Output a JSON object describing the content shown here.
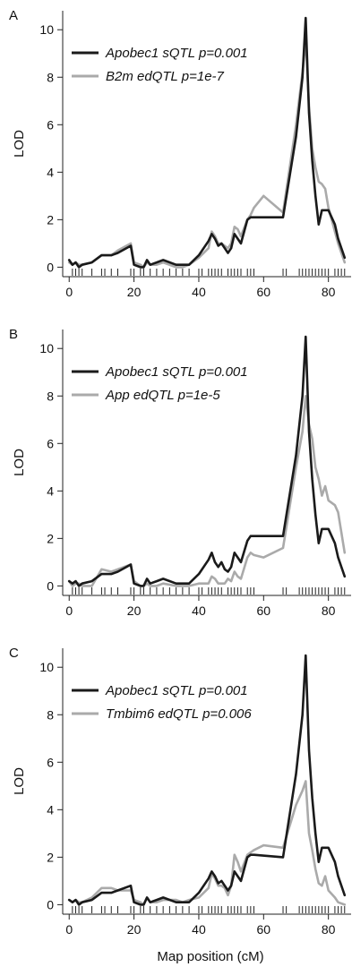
{
  "figure": {
    "xlabel": "Map position (cM)"
  },
  "colors": {
    "series_dark": "#1a1a1a",
    "series_light": "#aaaaaa",
    "axis": "#222222"
  },
  "chart_data": [
    {
      "type": "line",
      "panel_label": "A",
      "xlabel": "",
      "ylabel": "LOD",
      "xlim": [
        -2,
        87
      ],
      "ylim": [
        -0.4,
        10.8
      ],
      "xticks": [
        0,
        20,
        40,
        60,
        80
      ],
      "yticks": [
        0,
        2,
        4,
        6,
        8,
        10
      ],
      "legend_position": "top-left",
      "marker_positions": [
        1,
        2,
        3,
        4,
        7,
        10,
        11,
        13,
        15,
        19,
        20,
        22,
        23,
        25,
        27,
        29,
        31,
        33,
        35,
        37,
        40,
        41,
        43,
        44,
        45,
        46,
        47,
        49,
        50,
        51,
        52,
        53,
        55,
        56,
        57,
        66,
        67,
        71,
        72,
        73,
        74,
        75,
        76,
        77,
        78,
        79,
        80,
        82,
        83,
        84,
        85
      ],
      "series": [
        {
          "name": "Apobec1 sQTL p=0.001",
          "color": "#1a1a1a",
          "x": [
            0,
            1,
            2,
            3,
            4,
            7,
            10,
            13,
            15,
            19,
            20,
            22,
            23,
            24,
            25,
            27,
            29,
            33,
            35,
            37,
            40,
            43,
            44,
            45,
            46,
            47,
            48,
            49,
            50,
            51,
            52,
            53,
            55,
            56,
            57,
            66,
            70,
            72,
            73,
            74,
            75,
            76,
            77,
            78,
            79,
            80,
            82,
            83,
            85
          ],
          "y": [
            0.3,
            0.1,
            0.2,
            0.0,
            0.1,
            0.2,
            0.5,
            0.5,
            0.6,
            0.9,
            0.1,
            0.0,
            0.0,
            0.3,
            0.1,
            0.2,
            0.3,
            0.1,
            0.1,
            0.1,
            0.5,
            1.1,
            1.4,
            1.2,
            0.9,
            1.0,
            0.8,
            0.6,
            0.8,
            1.4,
            1.2,
            1.0,
            2.0,
            2.1,
            2.1,
            2.1,
            5.5,
            8.0,
            10.5,
            6.5,
            4.5,
            3.0,
            1.8,
            2.4,
            2.4,
            2.4,
            1.8,
            1.2,
            0.4
          ]
        },
        {
          "name": "B2m edQTL p=1e-7",
          "color": "#aaaaaa",
          "x": [
            0,
            1,
            2,
            3,
            4,
            7,
            10,
            13,
            15,
            19,
            20,
            22,
            23,
            24,
            25,
            27,
            29,
            33,
            35,
            37,
            40,
            43,
            44,
            45,
            46,
            47,
            48,
            49,
            50,
            51,
            52,
            53,
            55,
            56,
            57,
            60,
            66,
            70,
            72,
            73,
            74,
            75,
            76,
            77,
            78,
            79,
            80,
            82,
            83,
            85
          ],
          "y": [
            0.2,
            0.1,
            0.2,
            0.1,
            0.1,
            0.2,
            0.5,
            0.5,
            0.7,
            1.0,
            0.2,
            0.1,
            0.0,
            0.2,
            0.1,
            0.1,
            0.2,
            0.0,
            0.0,
            0.1,
            0.4,
            0.8,
            1.5,
            1.3,
            1.0,
            1.0,
            0.9,
            0.8,
            1.0,
            1.7,
            1.6,
            1.3,
            2.0,
            2.2,
            2.5,
            3.0,
            2.3,
            6.0,
            8.2,
            9.6,
            6.8,
            5.0,
            4.2,
            3.6,
            3.5,
            3.3,
            2.5,
            1.5,
            1.0,
            0.2
          ]
        }
      ]
    },
    {
      "type": "line",
      "panel_label": "B",
      "xlabel": "",
      "ylabel": "LOD",
      "xlim": [
        -2,
        87
      ],
      "ylim": [
        -0.4,
        10.8
      ],
      "xticks": [
        0,
        20,
        40,
        60,
        80
      ],
      "yticks": [
        0,
        2,
        4,
        6,
        8,
        10
      ],
      "legend_position": "top-left",
      "marker_positions": [
        1,
        2,
        3,
        4,
        7,
        10,
        11,
        13,
        15,
        19,
        20,
        22,
        23,
        25,
        27,
        29,
        31,
        33,
        35,
        37,
        40,
        41,
        43,
        44,
        45,
        46,
        47,
        49,
        50,
        51,
        52,
        53,
        55,
        56,
        57,
        66,
        67,
        71,
        72,
        73,
        74,
        75,
        76,
        77,
        78,
        79,
        80,
        82,
        83,
        84,
        85
      ],
      "series": [
        {
          "name": "Apobec1 sQTL p=0.001",
          "color": "#1a1a1a",
          "x": [
            0,
            1,
            2,
            3,
            4,
            7,
            10,
            13,
            15,
            19,
            20,
            22,
            23,
            24,
            25,
            27,
            29,
            33,
            35,
            37,
            40,
            43,
            44,
            45,
            46,
            47,
            48,
            49,
            50,
            51,
            52,
            53,
            55,
            56,
            57,
            66,
            70,
            72,
            73,
            74,
            75,
            76,
            77,
            78,
            79,
            80,
            82,
            83,
            85
          ],
          "y": [
            0.2,
            0.1,
            0.2,
            0.0,
            0.1,
            0.2,
            0.5,
            0.5,
            0.6,
            0.9,
            0.1,
            0.0,
            0.0,
            0.3,
            0.1,
            0.2,
            0.3,
            0.1,
            0.1,
            0.1,
            0.5,
            1.1,
            1.4,
            1.0,
            0.8,
            1.0,
            0.7,
            0.6,
            0.8,
            1.4,
            1.2,
            1.0,
            1.9,
            2.1,
            2.1,
            2.1,
            5.5,
            8.0,
            10.5,
            6.5,
            4.5,
            3.0,
            1.8,
            2.4,
            2.4,
            2.4,
            1.8,
            1.2,
            0.4
          ]
        },
        {
          "name": "App edQTL p=1e-5",
          "color": "#aaaaaa",
          "x": [
            0,
            1,
            2,
            3,
            4,
            7,
            10,
            13,
            15,
            19,
            20,
            22,
            23,
            24,
            25,
            27,
            29,
            33,
            35,
            37,
            40,
            43,
            44,
            45,
            46,
            47,
            48,
            49,
            50,
            51,
            52,
            53,
            55,
            56,
            57,
            60,
            66,
            70,
            72,
            73,
            74,
            75,
            76,
            77,
            78,
            79,
            80,
            82,
            83,
            85
          ],
          "y": [
            0.2,
            0.0,
            0.1,
            0.1,
            0.0,
            0.0,
            0.7,
            0.6,
            0.7,
            0.9,
            0.2,
            0.0,
            0.0,
            0.1,
            0.0,
            0.0,
            0.1,
            0.0,
            0.0,
            0.0,
            0.1,
            0.1,
            0.4,
            0.3,
            0.1,
            0.1,
            0.1,
            0.3,
            0.2,
            0.6,
            0.4,
            0.3,
            1.2,
            1.4,
            1.3,
            1.2,
            1.6,
            5.0,
            6.5,
            8.0,
            6.8,
            6.2,
            5.0,
            4.5,
            3.8,
            4.2,
            3.6,
            3.4,
            3.1,
            1.4
          ]
        }
      ]
    },
    {
      "type": "line",
      "panel_label": "C",
      "xlabel": "",
      "ylabel": "LOD",
      "xlim": [
        -2,
        87
      ],
      "ylim": [
        -0.4,
        10.8
      ],
      "xticks": [
        0,
        20,
        40,
        60,
        80
      ],
      "yticks": [
        0,
        2,
        4,
        6,
        8,
        10
      ],
      "legend_position": "top-left",
      "marker_positions": [
        1,
        2,
        3,
        4,
        7,
        10,
        11,
        13,
        15,
        19,
        20,
        22,
        23,
        25,
        27,
        29,
        31,
        33,
        35,
        37,
        40,
        41,
        43,
        44,
        45,
        46,
        47,
        49,
        50,
        51,
        52,
        53,
        55,
        56,
        57,
        66,
        67,
        71,
        72,
        73,
        74,
        75,
        76,
        77,
        78,
        79,
        80,
        82,
        83,
        84,
        85
      ],
      "series": [
        {
          "name": "Apobec1 sQTL p=0.001",
          "color": "#1a1a1a",
          "x": [
            0,
            1,
            2,
            3,
            4,
            7,
            10,
            13,
            15,
            19,
            20,
            22,
            23,
            24,
            25,
            27,
            29,
            33,
            35,
            37,
            40,
            43,
            44,
            45,
            46,
            47,
            48,
            49,
            50,
            51,
            52,
            53,
            55,
            56,
            57,
            66,
            70,
            72,
            73,
            74,
            75,
            76,
            77,
            78,
            79,
            80,
            82,
            83,
            85
          ],
          "y": [
            0.2,
            0.1,
            0.2,
            0.0,
            0.1,
            0.2,
            0.5,
            0.5,
            0.6,
            0.8,
            0.1,
            0.0,
            0.0,
            0.3,
            0.1,
            0.2,
            0.3,
            0.1,
            0.1,
            0.1,
            0.5,
            1.1,
            1.4,
            1.2,
            0.9,
            1.0,
            0.8,
            0.6,
            0.8,
            1.4,
            1.2,
            1.0,
            2.0,
            2.1,
            2.1,
            2.0,
            5.5,
            8.0,
            10.5,
            6.5,
            4.5,
            3.0,
            1.8,
            2.4,
            2.4,
            2.4,
            1.8,
            1.2,
            0.4
          ]
        },
        {
          "name": "Tmbim6 edQTL p=0.006",
          "color": "#aaaaaa",
          "x": [
            0,
            1,
            2,
            3,
            4,
            7,
            10,
            13,
            15,
            19,
            20,
            22,
            23,
            24,
            25,
            27,
            29,
            33,
            35,
            37,
            40,
            43,
            44,
            45,
            46,
            47,
            48,
            49,
            50,
            51,
            52,
            53,
            55,
            56,
            57,
            60,
            66,
            70,
            72,
            73,
            74,
            75,
            76,
            77,
            78,
            79,
            80,
            82,
            83,
            85
          ],
          "y": [
            0.2,
            0.1,
            0.2,
            0.1,
            0.1,
            0.3,
            0.7,
            0.7,
            0.6,
            0.6,
            0.2,
            0.1,
            0.0,
            0.3,
            0.1,
            0.1,
            0.2,
            0.2,
            0.1,
            0.2,
            0.3,
            0.7,
            1.3,
            1.1,
            0.8,
            0.8,
            0.7,
            0.4,
            0.8,
            2.1,
            1.8,
            1.4,
            2.1,
            2.2,
            2.3,
            2.5,
            2.4,
            4.2,
            4.8,
            5.2,
            3.0,
            2.3,
            1.5,
            0.9,
            0.8,
            1.2,
            0.6,
            0.3,
            0.1,
            0.0
          ]
        }
      ]
    }
  ]
}
